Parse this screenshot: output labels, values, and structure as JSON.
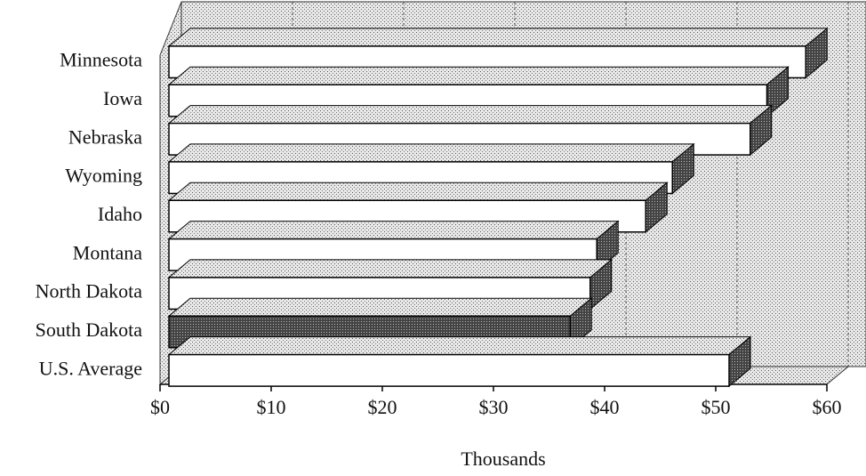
{
  "chart_data": {
    "type": "bar3d_horizontal",
    "categories": [
      "Minnesota",
      "Iowa",
      "Nebraska",
      "Wyoming",
      "Idaho",
      "Montana",
      "North Dakota",
      "South Dakota",
      "U.S. Average"
    ],
    "values": [
      58.1,
      54.6,
      53.1,
      46.1,
      43.7,
      39.3,
      38.7,
      36.9,
      51.2
    ],
    "colors": [
      "#ffffff",
      "#ffffff",
      "#ffffff",
      "#ffffff",
      "#ffffff",
      "#ffffff",
      "#ffffff",
      "#1a1a1a",
      "#ffffff"
    ],
    "xlim": [
      0,
      60
    ],
    "xticks": [
      {
        "value": 0,
        "label": "$0"
      },
      {
        "value": 10,
        "label": "$10"
      },
      {
        "value": 20,
        "label": "$20"
      },
      {
        "value": 30,
        "label": "$30"
      },
      {
        "value": 40,
        "label": "$40"
      },
      {
        "value": 50,
        "label": "$50"
      },
      {
        "value": 60,
        "label": "$60"
      }
    ],
    "xlabel": "Thousands",
    "grid": true
  }
}
